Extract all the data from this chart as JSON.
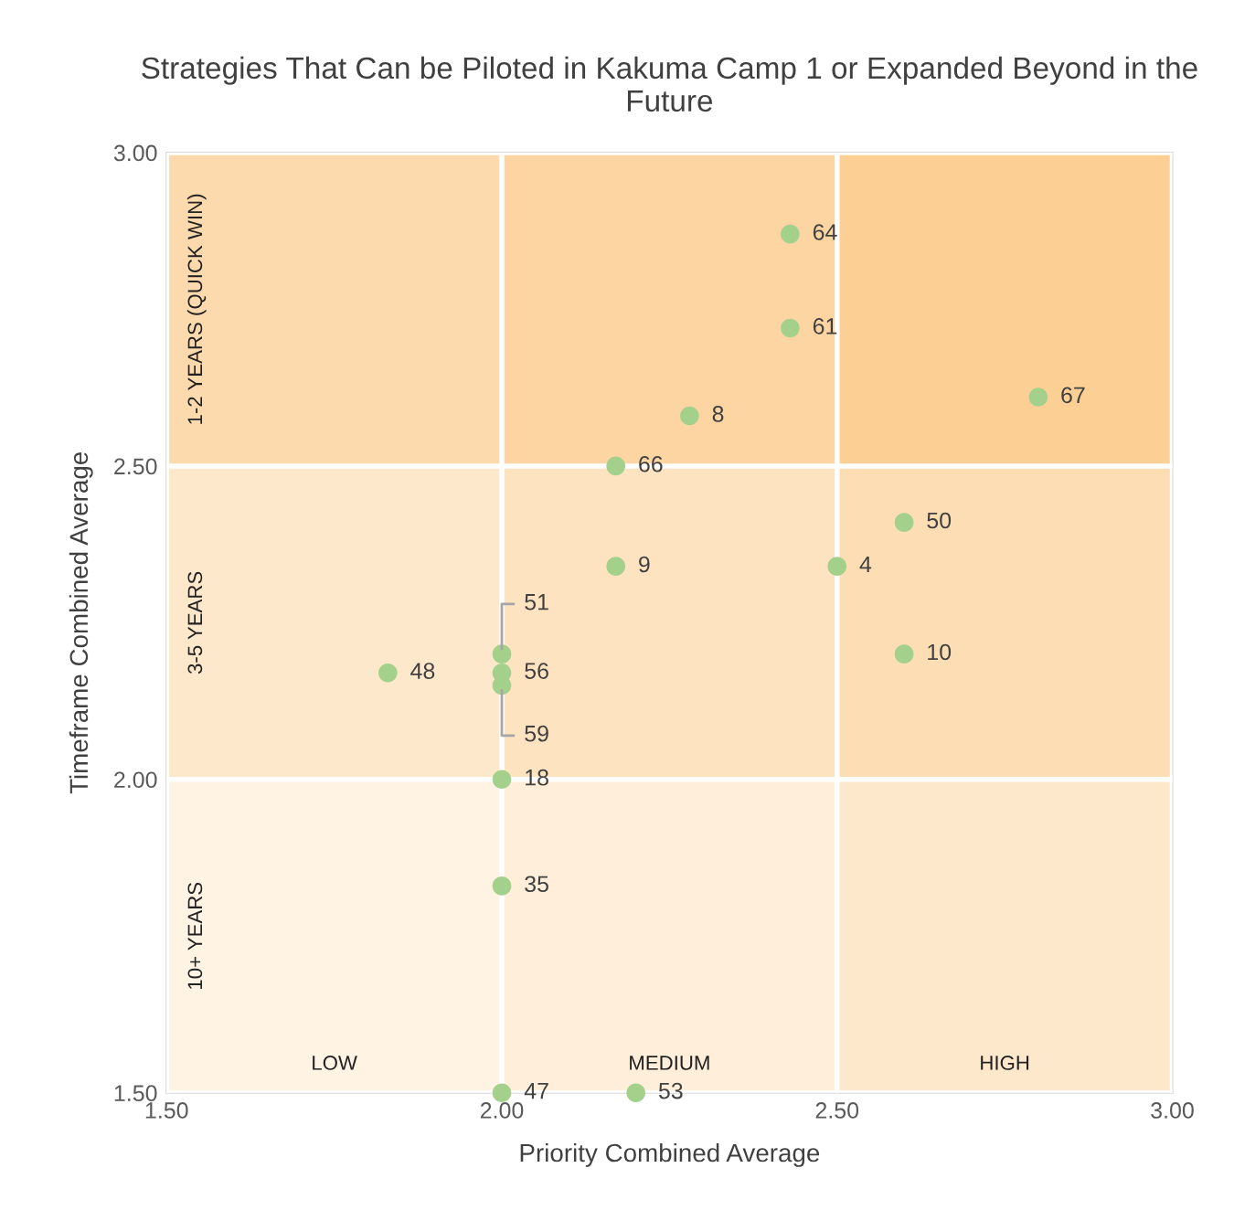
{
  "chart_data": {
    "type": "scatter",
    "title": "Strategies That Can be Piloted in Kakuma Camp 1 or Expanded Beyond in the Future",
    "xlabel": "Priority Combined Average",
    "ylabel": "Timeframe Combined Average",
    "x": [
      2.43,
      2.43,
      2.28,
      2.8,
      2.17,
      2.17,
      2.6,
      2.5,
      2.6,
      1.83,
      2.0,
      2.0,
      2.0,
      2.0,
      2.0,
      2.0,
      2.2
    ],
    "series": [
      {
        "color": "#a3d18c",
        "values": [
          2.87,
          2.72,
          2.58,
          2.61,
          2.5,
          2.34,
          2.41,
          2.34,
          2.2,
          2.17,
          2.2,
          2.17,
          2.15,
          2.0,
          1.83,
          1.5,
          1.5
        ]
      }
    ],
    "annotations": [
      {
        "text": "64",
        "x": 2.43,
        "y": 2.87
      },
      {
        "text": "61",
        "x": 2.43,
        "y": 2.72
      },
      {
        "text": "8",
        "x": 2.28,
        "y": 2.58
      },
      {
        "text": "67",
        "x": 2.8,
        "y": 2.61
      },
      {
        "text": "66",
        "x": 2.17,
        "y": 2.5
      },
      {
        "text": "9",
        "x": 2.17,
        "y": 2.34
      },
      {
        "text": "50",
        "x": 2.6,
        "y": 2.41
      },
      {
        "text": "4",
        "x": 2.5,
        "y": 2.34
      },
      {
        "text": "10",
        "x": 2.6,
        "y": 2.2
      },
      {
        "text": "48",
        "x": 1.83,
        "y": 2.17
      },
      {
        "text": "51",
        "x": 2.0,
        "y": 2.2
      },
      {
        "text": "56",
        "x": 2.0,
        "y": 2.17
      },
      {
        "text": "59",
        "x": 2.0,
        "y": 2.15
      },
      {
        "text": "18",
        "x": 2.0,
        "y": 2.0
      },
      {
        "text": "35",
        "x": 2.0,
        "y": 1.83
      },
      {
        "text": "47",
        "x": 2.0,
        "y": 1.5
      },
      {
        "text": "53",
        "x": 2.2,
        "y": 1.5
      }
    ],
    "xlim": [
      1.5,
      3.0
    ],
    "ylim": [
      1.5,
      3.0
    ],
    "xticks": [
      {
        "value": 1.5,
        "label": "1.50"
      },
      {
        "value": 2.0,
        "label": "2.00"
      },
      {
        "value": 2.5,
        "label": "2.50"
      },
      {
        "value": 3.0,
        "label": "3.00"
      }
    ],
    "yticks": [
      {
        "value": 1.5,
        "label": "1.50"
      },
      {
        "value": 2.0,
        "label": "2.00"
      },
      {
        "value": 2.5,
        "label": "2.50"
      },
      {
        "value": 3.0,
        "label": "3.00"
      }
    ],
    "grid": true,
    "marker": "circle",
    "bands": [
      {
        "axis": "x",
        "from": 1.5,
        "to": 2.0,
        "label": "LOW",
        "color": "#fff1dd"
      },
      {
        "axis": "x",
        "from": 2.0,
        "to": 2.5,
        "label": "MEDIUM",
        "color": "#fddcb0"
      },
      {
        "axis": "x",
        "from": 2.5,
        "to": 3.0,
        "label": "HIGH",
        "color": "#fbc27a"
      },
      {
        "axis": "y",
        "from": 1.5,
        "to": 2.0,
        "label": "10+ YEARS",
        "color": "#fff1dd"
      },
      {
        "axis": "y",
        "from": 2.0,
        "to": 2.5,
        "label": "3-5 YEARS",
        "color": "#fddcb0"
      },
      {
        "axis": "y",
        "from": 2.5,
        "to": 3.0,
        "label": "1-2 YEARS (QUICK WIN)",
        "color": "#fbc27a"
      }
    ]
  }
}
